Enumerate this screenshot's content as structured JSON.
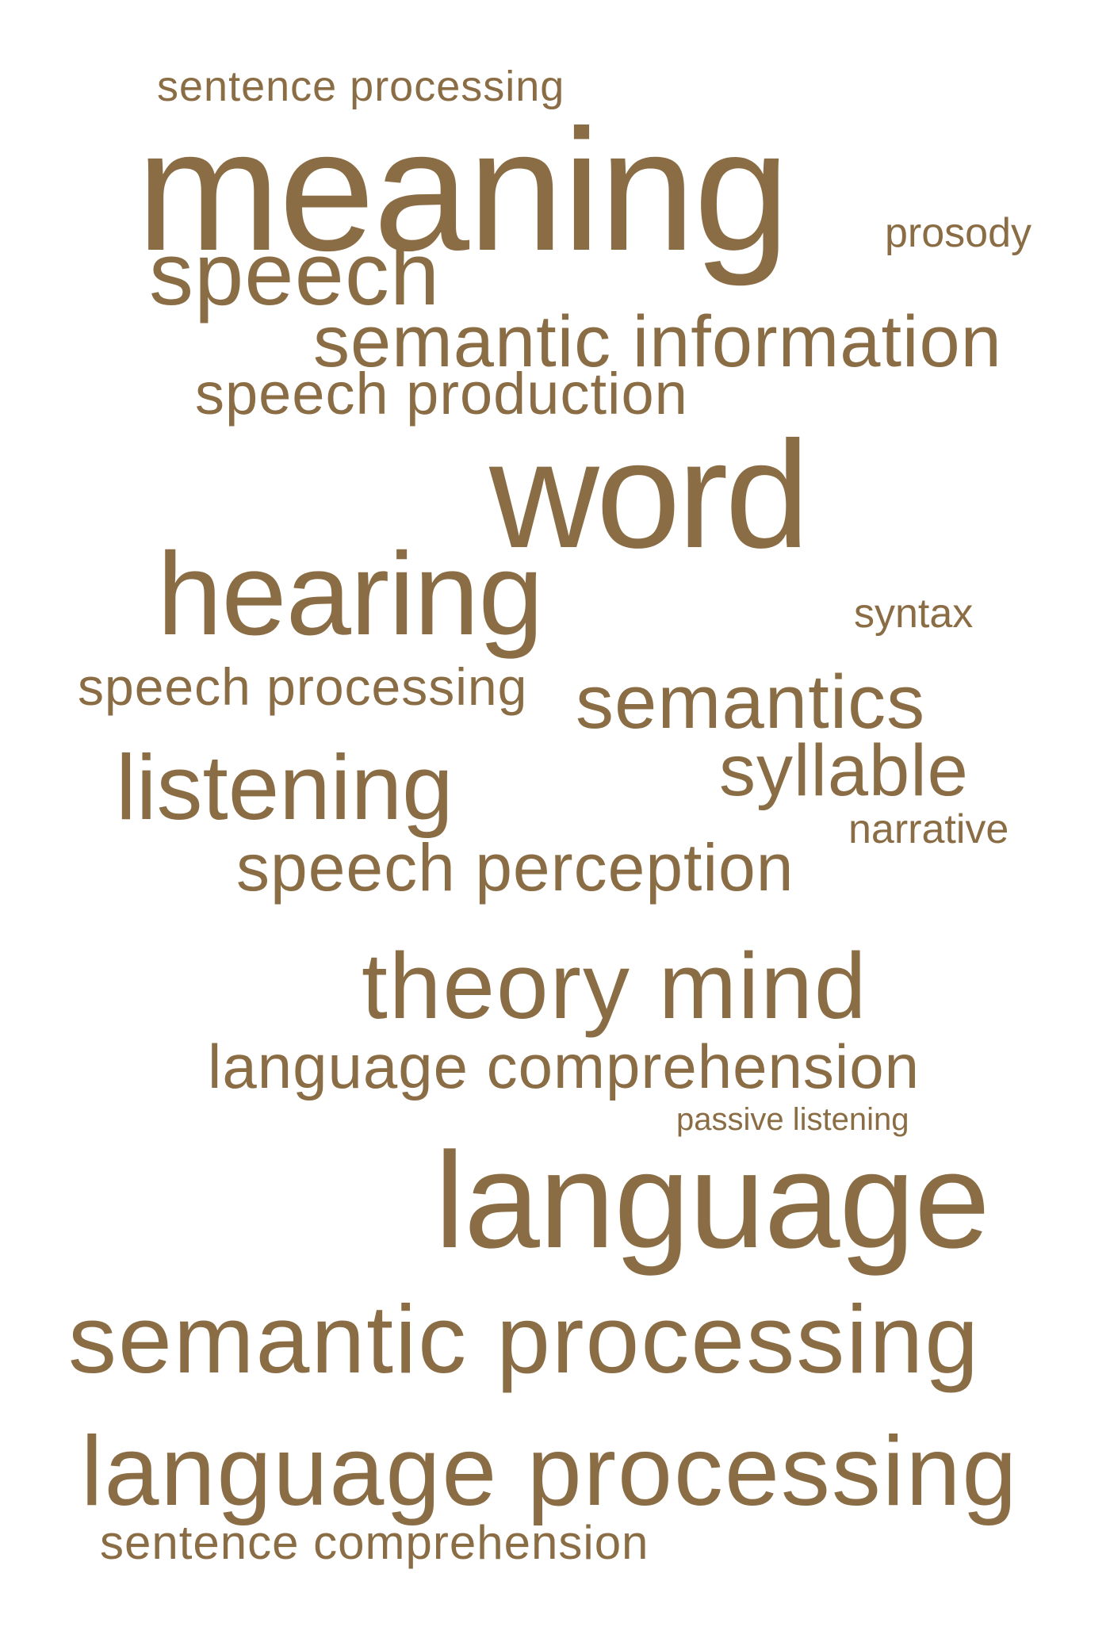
{
  "word_cloud": {
    "color": "#8a6d45",
    "words": [
      {
        "text": "sentence processing"
      },
      {
        "text": "meaning"
      },
      {
        "text": "prosody"
      },
      {
        "text": "speech"
      },
      {
        "text": "semantic information"
      },
      {
        "text": "speech production"
      },
      {
        "text": "word"
      },
      {
        "text": "hearing"
      },
      {
        "text": "syntax"
      },
      {
        "text": "speech processing"
      },
      {
        "text": "semantics"
      },
      {
        "text": "syllable"
      },
      {
        "text": "listening"
      },
      {
        "text": "narrative"
      },
      {
        "text": "speech perception"
      },
      {
        "text": "theory mind"
      },
      {
        "text": "language comprehension"
      },
      {
        "text": "passive listening"
      },
      {
        "text": "language"
      },
      {
        "text": "semantic processing"
      },
      {
        "text": "language processing"
      },
      {
        "text": "sentence comprehension"
      }
    ]
  }
}
